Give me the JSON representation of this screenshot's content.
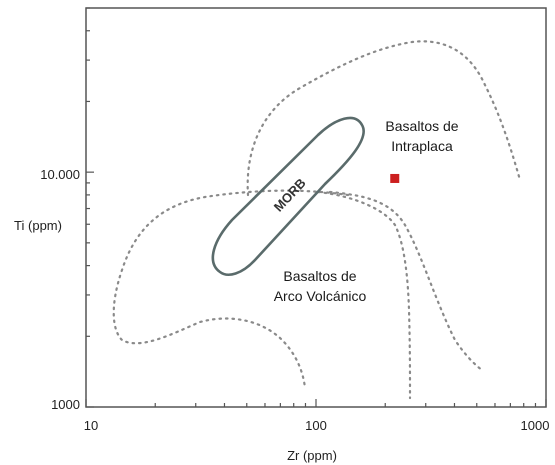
{
  "chart_data": {
    "type": "scatter",
    "xlabel": "Zr (ppm)",
    "ylabel": "Ti (ppm)",
    "x_scale": "log",
    "y_scale": "log",
    "xlim": [
      10,
      1000
    ],
    "ylim": [
      1000,
      50000
    ],
    "x_ticks": [
      {
        "value": 10,
        "label": "10"
      },
      {
        "value": 100,
        "label": "100"
      },
      {
        "value": 1000,
        "label": "1000"
      }
    ],
    "y_ticks": [
      {
        "value": 1000,
        "label": "1000"
      },
      {
        "value": 10000,
        "label": "10.000"
      }
    ],
    "fields": [
      {
        "label_line1": "Basaltos de",
        "label_line2": "Intraplaca"
      },
      {
        "label_line1": "Basaltos de",
        "label_line2": "Arco Volcánico"
      },
      {
        "label": "MORB"
      }
    ],
    "points": [
      {
        "x": 220,
        "y": 9400,
        "color": "#cc1f1f",
        "marker": "square"
      }
    ],
    "grid": false
  }
}
